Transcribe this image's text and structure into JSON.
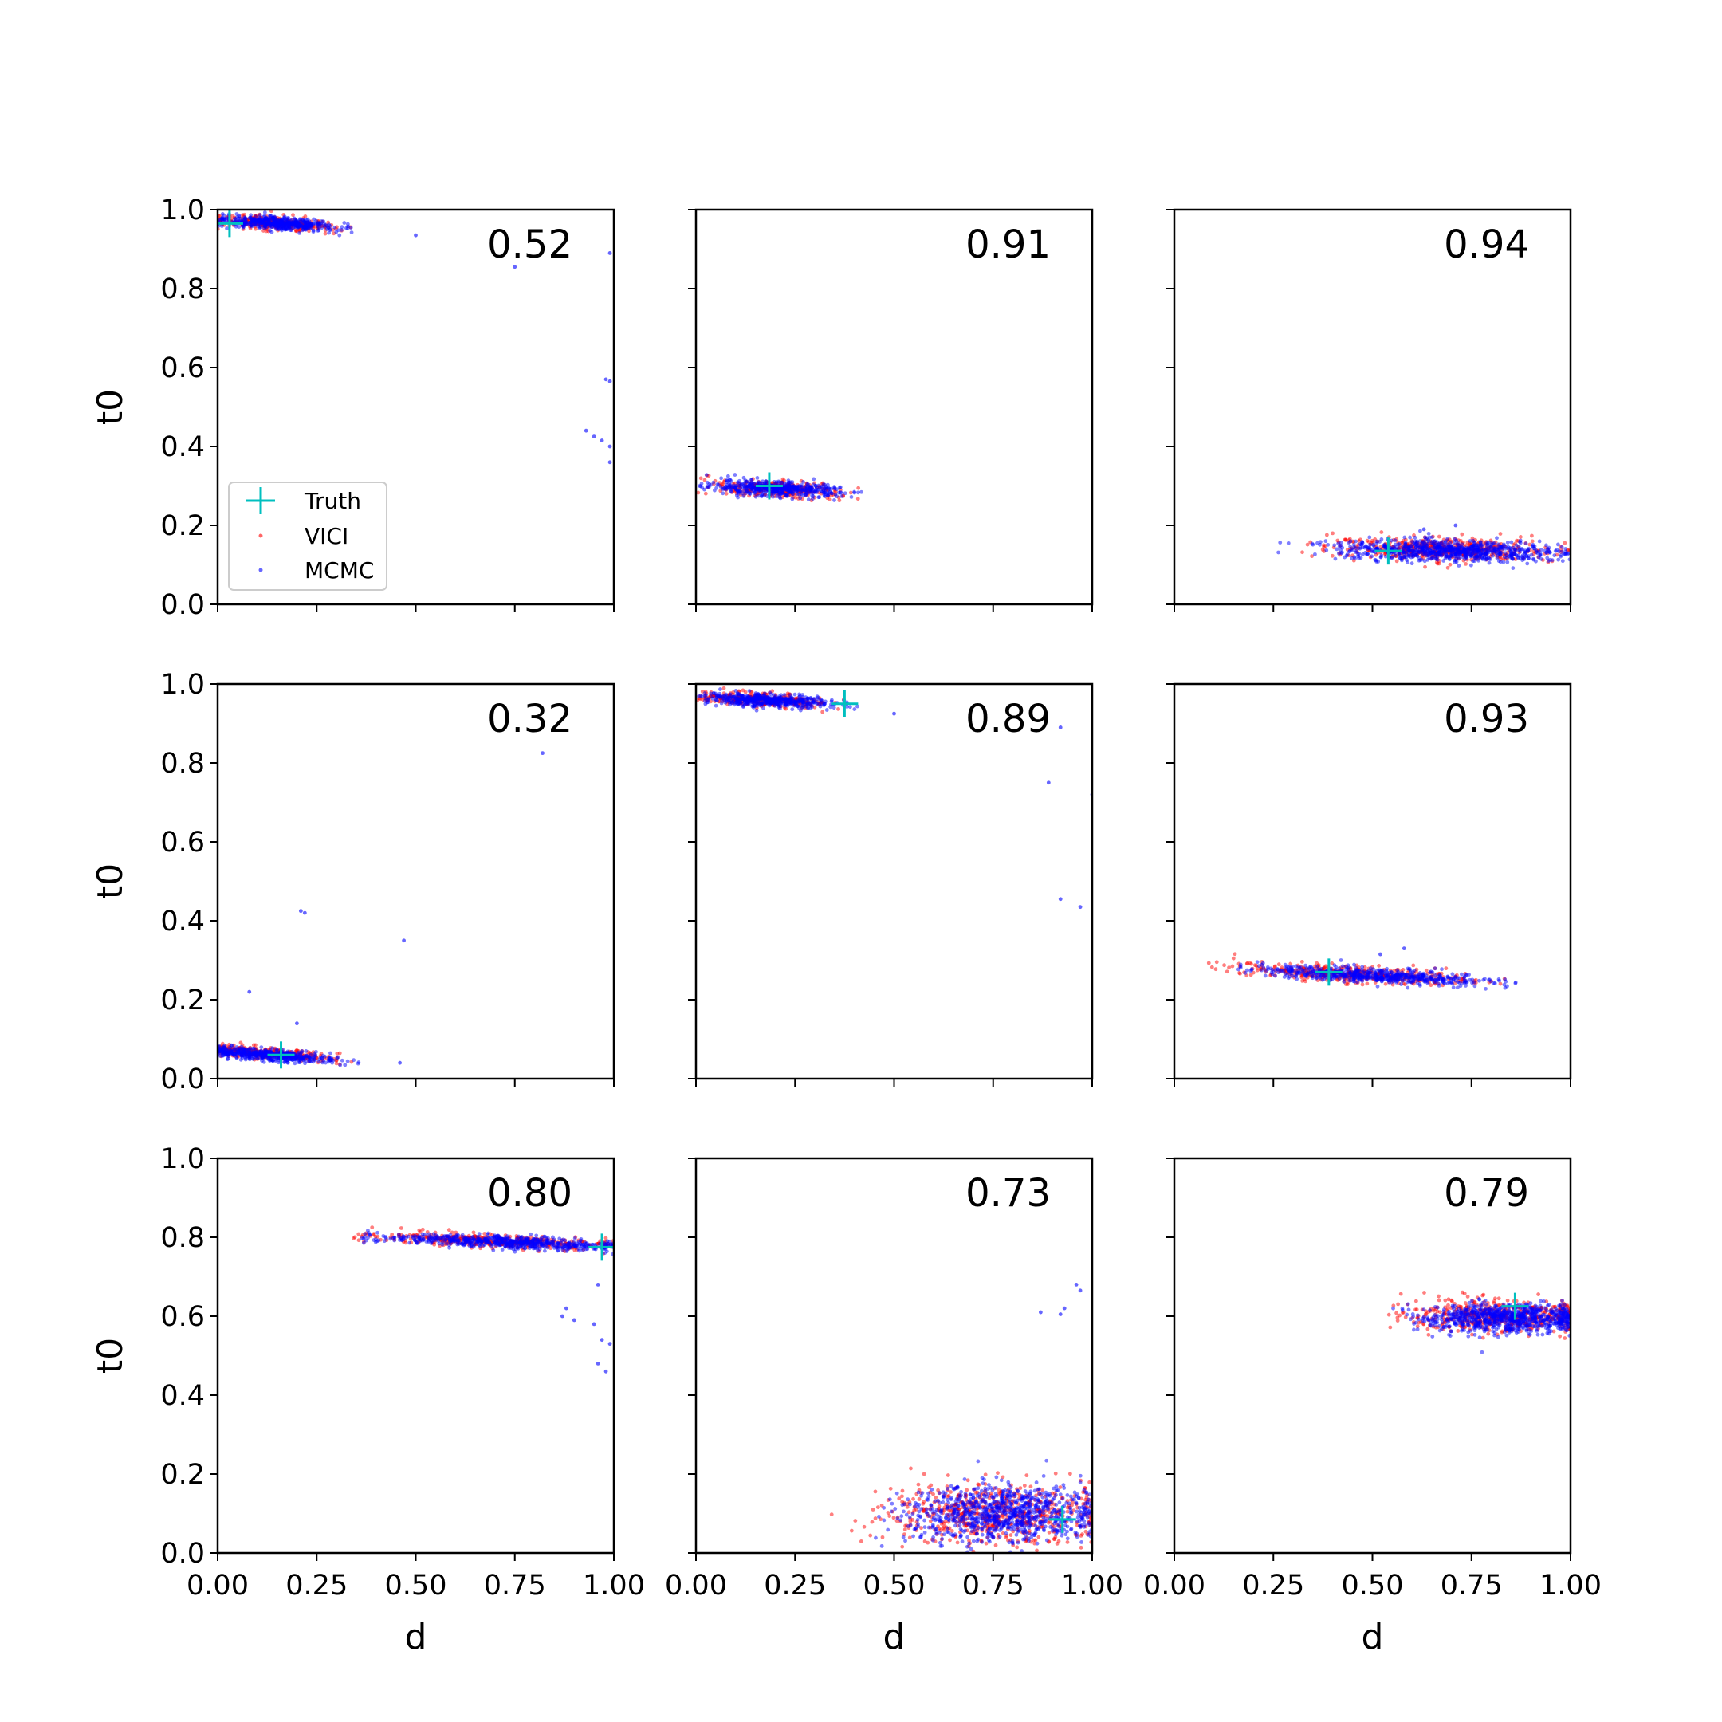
{
  "legend": {
    "entries": [
      {
        "label": "Truth",
        "color": "#00BFBF",
        "marker": "plus"
      },
      {
        "label": "VICI",
        "color": "#FF0000",
        "marker": "dot"
      },
      {
        "label": "MCMC",
        "color": "#0000FF",
        "marker": "dot"
      }
    ],
    "placement": "lower-left of top-left panel"
  },
  "colors": {
    "truth": "#00BFBF",
    "vici": "#FF0000",
    "mcmc": "#0000FF"
  },
  "axes": {
    "xlabel": "d",
    "ylabel": "t0",
    "xlim": [
      0,
      1
    ],
    "ylim": [
      0,
      1
    ],
    "xticks": [
      "0.00",
      "0.25",
      "0.50",
      "0.75",
      "1.00"
    ],
    "yticks": [
      "0.0",
      "0.2",
      "0.4",
      "0.6",
      "0.8",
      "1.0"
    ],
    "grid": false
  },
  "chart_data": [
    {
      "type": "scatter",
      "panel": 1,
      "label": "0.52",
      "truth": [
        0.03,
        0.965
      ],
      "vici": {
        "cx": 0.15,
        "cy": 0.965,
        "sx": 0.07,
        "sy": 0.008,
        "tilt": -0.06,
        "xmin": 0.0,
        "xmax": 0.35,
        "n": 300
      },
      "mcmc": {
        "cx": 0.15,
        "cy": 0.965,
        "sx": 0.07,
        "sy": 0.008,
        "tilt": -0.06,
        "xmin": 0.0,
        "xmax": 0.34,
        "n": 500
      },
      "mcmc_outliers": [
        [
          0.5,
          0.935
        ],
        [
          0.75,
          0.855
        ],
        [
          0.99,
          0.89
        ],
        [
          0.99,
          0.565
        ],
        [
          0.98,
          0.57
        ],
        [
          0.93,
          0.44
        ],
        [
          0.95,
          0.425
        ],
        [
          0.97,
          0.415
        ],
        [
          0.99,
          0.4
        ],
        [
          0.99,
          0.36
        ]
      ]
    },
    {
      "type": "scatter",
      "panel": 2,
      "label": "0.91",
      "truth": [
        0.185,
        0.3
      ],
      "vici": {
        "cx": 0.2,
        "cy": 0.293,
        "sx": 0.08,
        "sy": 0.01,
        "tilt": -0.05,
        "xmin": 0.0,
        "xmax": 0.42,
        "n": 300
      },
      "mcmc": {
        "cx": 0.2,
        "cy": 0.293,
        "sx": 0.08,
        "sy": 0.009,
        "tilt": -0.05,
        "xmin": 0.0,
        "xmax": 0.42,
        "n": 500
      },
      "mcmc_outliers": []
    },
    {
      "type": "scatter",
      "panel": 3,
      "label": "0.94",
      "truth": [
        0.54,
        0.135
      ],
      "vici": {
        "cx": 0.68,
        "cy": 0.14,
        "sx": 0.14,
        "sy": 0.014,
        "tilt": -0.02,
        "xmin": 0.22,
        "xmax": 1.0,
        "n": 500
      },
      "mcmc": {
        "cx": 0.7,
        "cy": 0.135,
        "sx": 0.14,
        "sy": 0.013,
        "tilt": -0.02,
        "xmin": 0.26,
        "xmax": 1.0,
        "n": 800
      },
      "mcmc_outliers": [
        [
          0.71,
          0.2
        ],
        [
          0.63,
          0.19
        ]
      ]
    },
    {
      "type": "scatter",
      "panel": 4,
      "label": "0.32",
      "truth": [
        0.16,
        0.06
      ],
      "vici": {
        "cx": 0.12,
        "cy": 0.065,
        "sx": 0.08,
        "sy": 0.007,
        "tilt": -0.08,
        "xmin": 0.0,
        "xmax": 0.35,
        "n": 300
      },
      "mcmc": {
        "cx": 0.13,
        "cy": 0.06,
        "sx": 0.08,
        "sy": 0.007,
        "tilt": -0.08,
        "xmin": 0.0,
        "xmax": 0.4,
        "n": 500
      },
      "mcmc_outliers": [
        [
          0.82,
          0.825
        ],
        [
          0.21,
          0.425
        ],
        [
          0.22,
          0.42
        ],
        [
          0.47,
          0.35
        ],
        [
          0.08,
          0.22
        ],
        [
          0.2,
          0.14
        ],
        [
          0.46,
          0.04
        ]
      ]
    },
    {
      "type": "scatter",
      "panel": 5,
      "label": "0.89",
      "truth": [
        0.375,
        0.95
      ],
      "vici": {
        "cx": 0.17,
        "cy": 0.96,
        "sx": 0.08,
        "sy": 0.008,
        "tilt": -0.05,
        "xmin": 0.0,
        "xmax": 0.4,
        "n": 300
      },
      "mcmc": {
        "cx": 0.18,
        "cy": 0.958,
        "sx": 0.08,
        "sy": 0.008,
        "tilt": -0.05,
        "xmin": 0.0,
        "xmax": 0.45,
        "n": 500
      },
      "mcmc_outliers": [
        [
          0.5,
          0.925
        ],
        [
          0.92,
          0.89
        ],
        [
          0.89,
          0.75
        ],
        [
          1.0,
          0.72
        ],
        [
          0.92,
          0.455
        ],
        [
          0.97,
          0.435
        ]
      ]
    },
    {
      "type": "scatter",
      "panel": 6,
      "label": "0.93",
      "truth": [
        0.39,
        0.27
      ],
      "vici": {
        "cx": 0.45,
        "cy": 0.265,
        "sx": 0.15,
        "sy": 0.01,
        "tilt": -0.05,
        "xmin": 0.08,
        "xmax": 0.85,
        "n": 400
      },
      "mcmc": {
        "cx": 0.5,
        "cy": 0.262,
        "sx": 0.14,
        "sy": 0.009,
        "tilt": -0.05,
        "xmin": 0.15,
        "xmax": 0.87,
        "n": 600
      },
      "mcmc_outliers": [
        [
          0.58,
          0.33
        ],
        [
          0.52,
          0.315
        ]
      ]
    },
    {
      "type": "scatter",
      "panel": 7,
      "label": "0.80",
      "truth": [
        0.97,
        0.775
      ],
      "vici": {
        "cx": 0.7,
        "cy": 0.79,
        "sx": 0.15,
        "sy": 0.008,
        "tilt": -0.04,
        "xmin": 0.34,
        "xmax": 1.0,
        "n": 400
      },
      "mcmc": {
        "cx": 0.72,
        "cy": 0.788,
        "sx": 0.15,
        "sy": 0.008,
        "tilt": -0.04,
        "xmin": 0.36,
        "xmax": 1.0,
        "n": 600
      },
      "mcmc_outliers": [
        [
          0.87,
          0.6
        ],
        [
          0.9,
          0.59
        ],
        [
          0.95,
          0.58
        ],
        [
          0.97,
          0.54
        ],
        [
          0.96,
          0.48
        ],
        [
          0.98,
          0.46
        ],
        [
          0.99,
          0.53
        ],
        [
          0.96,
          0.68
        ],
        [
          0.88,
          0.62
        ]
      ]
    },
    {
      "type": "scatter",
      "panel": 8,
      "label": "0.73",
      "truth": [
        0.925,
        0.085
      ],
      "vici": {
        "cx": 0.75,
        "cy": 0.1,
        "sx": 0.14,
        "sy": 0.04,
        "tilt": 0.0,
        "xmin": 0.32,
        "xmax": 1.0,
        "n": 600
      },
      "mcmc": {
        "cx": 0.78,
        "cy": 0.1,
        "sx": 0.12,
        "sy": 0.035,
        "tilt": 0.0,
        "xmin": 0.45,
        "xmax": 1.0,
        "n": 900
      },
      "mcmc_outliers": [
        [
          0.96,
          0.68
        ],
        [
          0.97,
          0.665
        ],
        [
          0.93,
          0.62
        ],
        [
          0.87,
          0.61
        ],
        [
          0.92,
          0.605
        ]
      ]
    },
    {
      "type": "scatter",
      "panel": 9,
      "label": "0.79",
      "truth": [
        0.86,
        0.625
      ],
      "vici": {
        "cx": 0.82,
        "cy": 0.6,
        "sx": 0.12,
        "sy": 0.02,
        "tilt": 0.0,
        "xmin": 0.54,
        "xmax": 1.0,
        "n": 500
      },
      "mcmc": {
        "cx": 0.84,
        "cy": 0.595,
        "sx": 0.11,
        "sy": 0.018,
        "tilt": 0.0,
        "xmin": 0.55,
        "xmax": 1.0,
        "n": 800
      },
      "mcmc_outliers": []
    }
  ]
}
